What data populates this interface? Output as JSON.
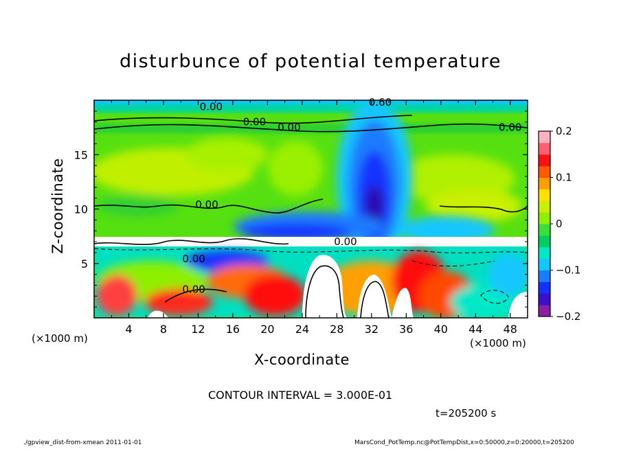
{
  "header": {
    "title": "disturbunce of potential temperature"
  },
  "chart_data": {
    "type": "heatmap",
    "title": "disturbunce of potential temperature",
    "xlabel": "X-coordinate",
    "ylabel": "Z-coordinate",
    "x_unit_label": "(×1000 m)",
    "xlim": [
      0,
      50
    ],
    "ylim": [
      0,
      20
    ],
    "x_ticks": [
      "4",
      "8",
      "12",
      "16",
      "20",
      "24",
      "28",
      "32",
      "36",
      "40",
      "44",
      "48"
    ],
    "y_ticks": [
      "5",
      "10",
      "15"
    ],
    "colorbar": {
      "range": [
        -0.2,
        0.2
      ],
      "tick_labels": [
        "0.2",
        "0.1",
        "0",
        "−0.1",
        "−0.2"
      ],
      "colors": [
        "#8b1fa6",
        "#3c10c8",
        "#1530ff",
        "#1a7cff",
        "#12c6ff",
        "#00e8c8",
        "#00d060",
        "#3ae03a",
        "#8df000",
        "#c8f000",
        "#ffe000",
        "#ffa000",
        "#ff5a00",
        "#ff1010",
        "#ff6070",
        "#ffb0c0"
      ]
    },
    "contour_labels": [
      "0.60",
      "0.00",
      "0.00",
      "0.00",
      "0.00",
      "0.00",
      "0.00",
      "0.00",
      "0.00"
    ],
    "contour_interval": "CONTOUR INTERVAL = 3.000E-01",
    "time_label": "t=205200 s",
    "grid": false
  },
  "footer": {
    "left": "./gpview_dist-from-xmean  2011-01-01",
    "right": "MarsCond_PotTemp.nc@PotTempDist,x=0:50000,z=0:20000,t=205200"
  },
  "colors": {
    "stratosphere_green": "#56e010",
    "plume_blue": "#1a3ad0",
    "warm_red": "#ff2a1a"
  }
}
